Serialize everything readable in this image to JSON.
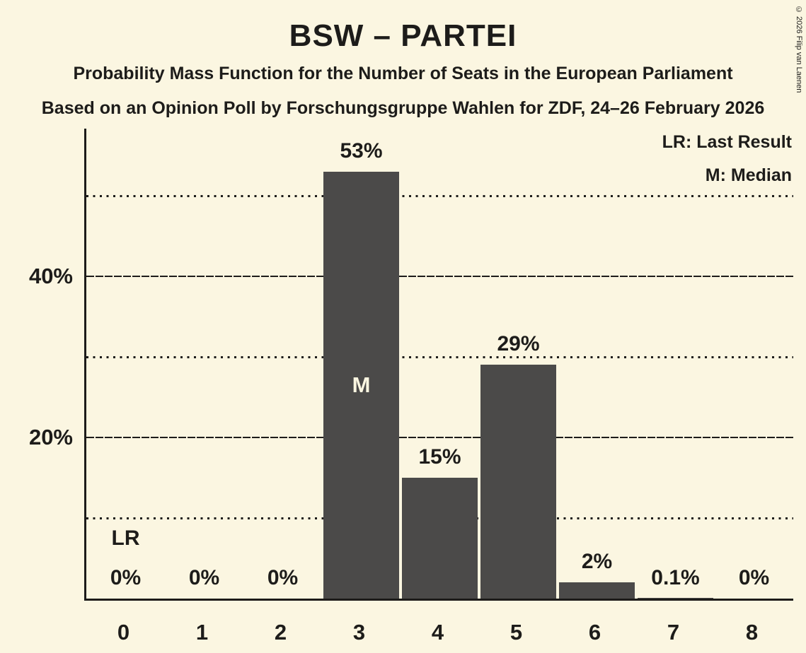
{
  "header": {
    "title": "BSW – PARTEI",
    "subtitle1": "Probability Mass Function for the Number of Seats in the European Parliament",
    "subtitle2": "Based on an Opinion Poll by Forschungsgruppe Wahlen for ZDF, 24–26 February 2026"
  },
  "legend": {
    "lr": "LR: Last Result",
    "m": "M: Median"
  },
  "copyright": "© 2026 Filip van Laenen",
  "chart_data": {
    "type": "bar",
    "title": "BSW – PARTEI",
    "subtitle": "Probability Mass Function for the Number of Seats in the European Parliament",
    "source_line": "Based on an Opinion Poll by Forschungsgruppe Wahlen for ZDF, 24–26 February 2026",
    "categories": [
      "0",
      "1",
      "2",
      "3",
      "4",
      "5",
      "6",
      "7",
      "8"
    ],
    "values": [
      0,
      0,
      0,
      53,
      15,
      29,
      2,
      0.1,
      0
    ],
    "value_labels": [
      "0%",
      "0%",
      "0%",
      "53%",
      "15%",
      "29%",
      "2%",
      "0.1%",
      "0%"
    ],
    "xlabel": "",
    "ylabel": "",
    "ylim": [
      0,
      58.3
    ],
    "y_major_ticks": [
      {
        "value": 20,
        "label": "20%"
      },
      {
        "value": 40,
        "label": "40%"
      }
    ],
    "y_minor_gridlines": [
      10,
      30,
      50
    ],
    "grid": true,
    "legend_position": "top-right",
    "legend_entries": [
      "LR: Last Result",
      "M: Median"
    ],
    "median_index": 3,
    "median_marker": "M",
    "last_result_index": 0,
    "last_result_marker": "LR",
    "colors": {
      "background": "#FBF6E1",
      "bar": "#4B4A49",
      "text": "#1D1C1A",
      "marker_inside_bar": "#FBF6E1",
      "gridline": "#1D1C1A"
    }
  }
}
